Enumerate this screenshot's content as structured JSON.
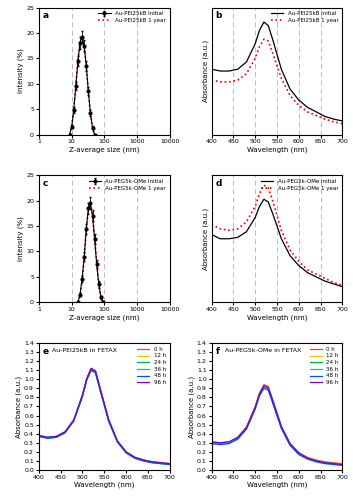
{
  "chart_data": [
    {
      "type": "line",
      "panel_label": "a",
      "log": "x",
      "grid": true,
      "legend": "upper right",
      "x_label": "Z-average size (nm)",
      "y_label": "Intensity (%)",
      "xlim": [
        1,
        10000
      ],
      "xticks": [
        1,
        10,
        100,
        1000,
        10000
      ],
      "ylim": [
        0,
        25
      ],
      "yticks": [
        0,
        5,
        10,
        15,
        20,
        25
      ],
      "x": [
        8.7,
        10.1,
        11.7,
        13.5,
        15.7,
        18.2,
        21.0,
        24.4,
        28.2,
        32.7,
        37.8,
        43.8,
        50.7
      ],
      "series": [
        {
          "name": "Au-PEI25kB Initial",
          "color": "#000000",
          "marker": "circle",
          "line_style": "solid",
          "values": [
            0,
            1.5,
            4.8,
            9.5,
            14.5,
            18,
            19.2,
            17.5,
            13.5,
            8.5,
            4.2,
            1.3,
            0
          ],
          "errors": [
            0,
            0.3,
            0.6,
            0.8,
            1,
            1.1,
            1.2,
            1.1,
            1,
            0.8,
            0.6,
            0.3,
            0
          ]
        },
        {
          "name": "Au-PEI25kB 1 year",
          "color": "#e00000",
          "marker": "none",
          "line_style": "dotted",
          "values": [
            0,
            1.6,
            5,
            9.8,
            14.8,
            18.2,
            19.3,
            17.4,
            13.3,
            8.3,
            4,
            1.2,
            0
          ]
        }
      ]
    },
    {
      "type": "line",
      "panel_label": "b",
      "grid": true,
      "legend": "upper right",
      "tick_labels": "x",
      "x_label": "Wavelength (nm)",
      "y_label": "Absorbance (a.u.)",
      "xlim": [
        400,
        700
      ],
      "xticks": [
        400,
        450,
        500,
        550,
        600,
        650,
        700
      ],
      "ylim": [
        0,
        1.4
      ],
      "x": [
        400,
        420,
        440,
        460,
        480,
        500,
        510,
        520,
        530,
        540,
        560,
        580,
        600,
        620,
        640,
        660,
        680,
        700
      ],
      "series": [
        {
          "name": "Au-PEI25kB Initial",
          "color": "#000000",
          "marker": "none",
          "line_style": "solid",
          "values": [
            0.72,
            0.7,
            0.7,
            0.72,
            0.8,
            1.0,
            1.15,
            1.24,
            1.2,
            1.05,
            0.72,
            0.5,
            0.38,
            0.3,
            0.25,
            0.2,
            0.17,
            0.15
          ]
        },
        {
          "name": "Au-PEI25kB 1 year",
          "color": "#e00000",
          "marker": "none",
          "line_style": "dotted",
          "values": [
            0.6,
            0.58,
            0.58,
            0.6,
            0.67,
            0.84,
            0.97,
            1.05,
            1.03,
            0.9,
            0.62,
            0.43,
            0.32,
            0.25,
            0.21,
            0.17,
            0.14,
            0.12
          ]
        }
      ]
    },
    {
      "type": "line",
      "panel_label": "c",
      "log": "x",
      "grid": true,
      "legend": "upper right",
      "x_label": "Z-average size (nm)",
      "y_label": "Intensity (%)",
      "xlim": [
        1,
        10000
      ],
      "xticks": [
        1,
        10,
        100,
        1000,
        10000
      ],
      "ylim": [
        0,
        25
      ],
      "yticks": [
        0,
        5,
        10,
        15,
        20,
        25
      ],
      "x": [
        15.7,
        18.2,
        21.0,
        24.4,
        28.2,
        32.7,
        37.8,
        43.8,
        50.7,
        58.8,
        68.1,
        78.8,
        91.3
      ],
      "series": [
        {
          "name": "Au-PEG5k-OMe Initial",
          "color": "#000000",
          "marker": "circle",
          "line_style": "solid",
          "values": [
            0,
            1.5,
            4.5,
            9,
            14.5,
            18.5,
            19.5,
            17,
            12.5,
            7.5,
            3.5,
            1,
            0
          ],
          "errors": [
            0,
            0.3,
            0.6,
            0.8,
            1,
            1.1,
            1.2,
            1.1,
            1,
            0.8,
            0.6,
            0.3,
            0
          ]
        },
        {
          "name": "Au-PEG5k-OMe 1 year",
          "color": "#e00000",
          "marker": "none",
          "line_style": "dotted",
          "values": [
            0,
            1.4,
            4.3,
            8.8,
            14.3,
            18.4,
            19.6,
            17.2,
            12.7,
            7.7,
            3.6,
            1.1,
            0
          ]
        }
      ]
    },
    {
      "type": "line",
      "panel_label": "d",
      "grid": true,
      "legend": "upper right",
      "tick_labels": "x",
      "x_label": "Wavelength (nm)",
      "y_label": "Absorbance (a.u.)",
      "xlim": [
        400,
        700
      ],
      "xticks": [
        400,
        450,
        500,
        550,
        600,
        650,
        700
      ],
      "ylim": [
        0,
        0.9
      ],
      "x": [
        400,
        420,
        440,
        460,
        480,
        500,
        510,
        520,
        530,
        540,
        560,
        580,
        600,
        620,
        640,
        660,
        680,
        700
      ],
      "series": [
        {
          "name": "Au-PEG5k-OMe Initial",
          "color": "#000000",
          "marker": "none",
          "line_style": "solid",
          "values": [
            0.48,
            0.45,
            0.45,
            0.46,
            0.5,
            0.6,
            0.68,
            0.73,
            0.71,
            0.63,
            0.45,
            0.33,
            0.26,
            0.21,
            0.18,
            0.15,
            0.13,
            0.11
          ]
        },
        {
          "name": "Au-PEG5k-OMe 1 year",
          "color": "#e00000",
          "marker": "none",
          "line_style": "dotted",
          "values": [
            0.55,
            0.52,
            0.51,
            0.52,
            0.57,
            0.68,
            0.77,
            0.83,
            0.81,
            0.72,
            0.51,
            0.37,
            0.29,
            0.23,
            0.2,
            0.17,
            0.14,
            0.12
          ]
        }
      ]
    },
    {
      "type": "line",
      "panel_label": "e",
      "annotation": "Au-PEI25kB in FETAX",
      "grid": false,
      "legend": "upper right",
      "x_label": "Wavelength (nm)",
      "y_label": "Absorbance (a.u.)",
      "xlim": [
        400,
        700
      ],
      "xticks": [
        400,
        450,
        500,
        550,
        600,
        650,
        700
      ],
      "ylim": [
        0,
        1.4
      ],
      "yticks": [
        0.0,
        0.1,
        0.2,
        0.3,
        0.4,
        0.5,
        0.6,
        0.7,
        0.8,
        0.9,
        1.0,
        1.1,
        1.2,
        1.3,
        1.4
      ],
      "x": [
        400,
        420,
        440,
        460,
        480,
        500,
        510,
        520,
        530,
        540,
        560,
        580,
        600,
        620,
        640,
        660,
        680,
        700
      ],
      "series": [
        {
          "name": "0 h",
          "color": "#ff4500",
          "marker": "none",
          "line_style": "solid",
          "values": [
            0.38,
            0.36,
            0.37,
            0.42,
            0.55,
            0.82,
            1.01,
            1.12,
            1.09,
            0.91,
            0.55,
            0.32,
            0.2,
            0.14,
            0.11,
            0.09,
            0.08,
            0.07
          ]
        },
        {
          "name": "12 h",
          "color": "#e6c800",
          "marker": "none",
          "line_style": "solid",
          "values": [
            0.38,
            0.36,
            0.37,
            0.42,
            0.55,
            0.82,
            1.0,
            1.11,
            1.08,
            0.9,
            0.55,
            0.32,
            0.2,
            0.14,
            0.11,
            0.09,
            0.08,
            0.07
          ]
        },
        {
          "name": "24 h",
          "color": "#00b050",
          "marker": "none",
          "line_style": "solid",
          "values": [
            0.37,
            0.35,
            0.36,
            0.41,
            0.54,
            0.81,
            0.99,
            1.1,
            1.07,
            0.89,
            0.54,
            0.31,
            0.19,
            0.13,
            0.1,
            0.08,
            0.07,
            0.06
          ]
        },
        {
          "name": "36 h",
          "color": "#00c0c0",
          "marker": "none",
          "line_style": "solid",
          "values": [
            0.38,
            0.36,
            0.37,
            0.42,
            0.55,
            0.82,
            1.0,
            1.11,
            1.08,
            0.9,
            0.55,
            0.32,
            0.2,
            0.14,
            0.11,
            0.09,
            0.08,
            0.07
          ]
        },
        {
          "name": "48 h",
          "color": "#0050ff",
          "marker": "none",
          "line_style": "solid",
          "values": [
            0.37,
            0.35,
            0.36,
            0.41,
            0.54,
            0.81,
            1.0,
            1.1,
            1.07,
            0.89,
            0.54,
            0.31,
            0.19,
            0.13,
            0.1,
            0.08,
            0.07,
            0.06
          ]
        },
        {
          "name": "96 h",
          "color": "#8000c0",
          "marker": "none",
          "line_style": "solid",
          "values": [
            0.38,
            0.36,
            0.37,
            0.42,
            0.55,
            0.83,
            1.01,
            1.12,
            1.09,
            0.91,
            0.56,
            0.32,
            0.2,
            0.14,
            0.11,
            0.09,
            0.08,
            0.07
          ]
        }
      ]
    },
    {
      "type": "line",
      "panel_label": "f",
      "annotation": "Au-PEG5k-OMe in FETAX",
      "grid": false,
      "legend": "upper right",
      "x_label": "Wavelength (nm)",
      "y_label": "Absorbance (a.u.)",
      "xlim": [
        400,
        700
      ],
      "xticks": [
        400,
        450,
        500,
        550,
        600,
        650,
        700
      ],
      "ylim": [
        0,
        1.4
      ],
      "yticks": [
        0.0,
        0.1,
        0.2,
        0.3,
        0.4,
        0.5,
        0.6,
        0.7,
        0.8,
        0.9,
        1.0,
        1.1,
        1.2,
        1.3,
        1.4
      ],
      "x": [
        400,
        420,
        440,
        460,
        480,
        500,
        510,
        520,
        530,
        540,
        560,
        580,
        600,
        620,
        640,
        660,
        680,
        700
      ],
      "series": [
        {
          "name": "0 h",
          "color": "#ff4500",
          "marker": "none",
          "line_style": "solid",
          "values": [
            0.31,
            0.3,
            0.31,
            0.36,
            0.47,
            0.7,
            0.85,
            0.94,
            0.92,
            0.78,
            0.48,
            0.29,
            0.19,
            0.14,
            0.11,
            0.09,
            0.08,
            0.07
          ]
        },
        {
          "name": "12 h",
          "color": "#e6c800",
          "marker": "none",
          "line_style": "solid",
          "values": [
            0.3,
            0.29,
            0.3,
            0.35,
            0.46,
            0.69,
            0.84,
            0.93,
            0.91,
            0.77,
            0.47,
            0.28,
            0.18,
            0.13,
            0.1,
            0.08,
            0.07,
            0.06
          ]
        },
        {
          "name": "24 h",
          "color": "#00b050",
          "marker": "none",
          "line_style": "solid",
          "values": [
            0.3,
            0.29,
            0.3,
            0.35,
            0.46,
            0.68,
            0.83,
            0.92,
            0.9,
            0.76,
            0.47,
            0.28,
            0.18,
            0.13,
            0.1,
            0.08,
            0.07,
            0.06
          ]
        },
        {
          "name": "36 h",
          "color": "#00c0c0",
          "marker": "none",
          "line_style": "solid",
          "values": [
            0.3,
            0.29,
            0.3,
            0.35,
            0.46,
            0.68,
            0.83,
            0.91,
            0.89,
            0.75,
            0.46,
            0.28,
            0.18,
            0.13,
            0.1,
            0.08,
            0.07,
            0.06
          ]
        },
        {
          "name": "48 h",
          "color": "#0050ff",
          "marker": "none",
          "line_style": "solid",
          "values": [
            0.29,
            0.28,
            0.29,
            0.34,
            0.45,
            0.67,
            0.82,
            0.9,
            0.88,
            0.74,
            0.46,
            0.27,
            0.17,
            0.12,
            0.09,
            0.07,
            0.06,
            0.05
          ]
        },
        {
          "name": "96 h",
          "color": "#8000c0",
          "marker": "none",
          "line_style": "solid",
          "values": [
            0.31,
            0.3,
            0.31,
            0.36,
            0.47,
            0.69,
            0.84,
            0.93,
            0.91,
            0.77,
            0.48,
            0.29,
            0.19,
            0.13,
            0.1,
            0.08,
            0.07,
            0.06
          ]
        }
      ]
    }
  ]
}
